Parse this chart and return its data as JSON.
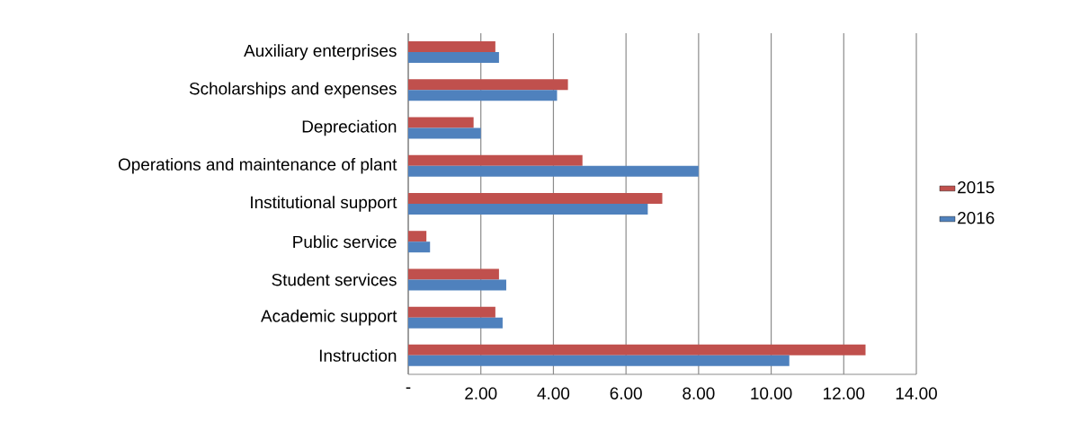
{
  "chart_data": {
    "type": "bar",
    "orientation": "horizontal",
    "categories": [
      "Auxiliary enterprises",
      "Scholarships and expenses",
      "Depreciation",
      "Operations and maintenance of plant",
      "Institutional support",
      "Public service",
      "Student services",
      "Academic support",
      "Instruction"
    ],
    "series": [
      {
        "name": "2015",
        "color": "#c0504d",
        "values": [
          2.4,
          4.4,
          1.8,
          4.8,
          7.0,
          0.5,
          2.5,
          2.4,
          12.6
        ]
      },
      {
        "name": "2016",
        "color": "#4f81bd",
        "values": [
          2.5,
          4.1,
          2.0,
          8.0,
          6.6,
          0.6,
          2.7,
          2.6,
          10.5
        ]
      }
    ],
    "xlim": [
      0,
      14
    ],
    "xticks": [
      {
        "value": 0,
        "label": "-"
      },
      {
        "value": 2,
        "label": "2.00"
      },
      {
        "value": 4,
        "label": "4.00"
      },
      {
        "value": 6,
        "label": "6.00"
      },
      {
        "value": 8,
        "label": "8.00"
      },
      {
        "value": 10,
        "label": "10.00"
      },
      {
        "value": 12,
        "label": "12.00"
      },
      {
        "value": 14,
        "label": "14.00"
      }
    ],
    "grid": "x",
    "legend": "right"
  }
}
